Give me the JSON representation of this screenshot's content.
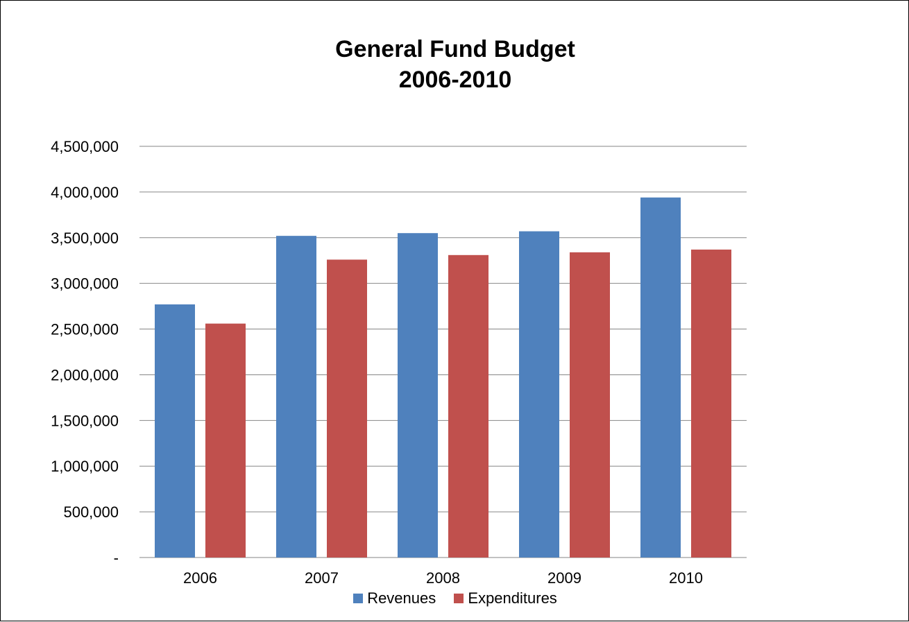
{
  "chart_data": {
    "type": "bar",
    "title": [
      "General Fund Budget",
      "2006-2010"
    ],
    "categories": [
      "2006",
      "2007",
      "2008",
      "2009",
      "2010"
    ],
    "series": [
      {
        "name": "Revenues",
        "color": "#4F81BD",
        "values": [
          2770000,
          3520000,
          3550000,
          3570000,
          3940000
        ]
      },
      {
        "name": "Expenditures",
        "color": "#C0504D",
        "values": [
          2560000,
          3260000,
          3310000,
          3340000,
          3370000
        ]
      }
    ],
    "ylim": [
      0,
      4500000
    ],
    "yticks": [
      0,
      500000,
      1000000,
      1500000,
      2000000,
      2500000,
      3000000,
      3500000,
      4000000,
      4500000
    ],
    "ytick_labels": [
      "-",
      "500,000",
      "1,000,000",
      "1,500,000",
      "2,000,000",
      "2,500,000",
      "3,000,000",
      "3,500,000",
      "4,000,000",
      "4,500,000"
    ],
    "grid": true,
    "gridline_color": "#868686",
    "legend_position": "bottom"
  }
}
